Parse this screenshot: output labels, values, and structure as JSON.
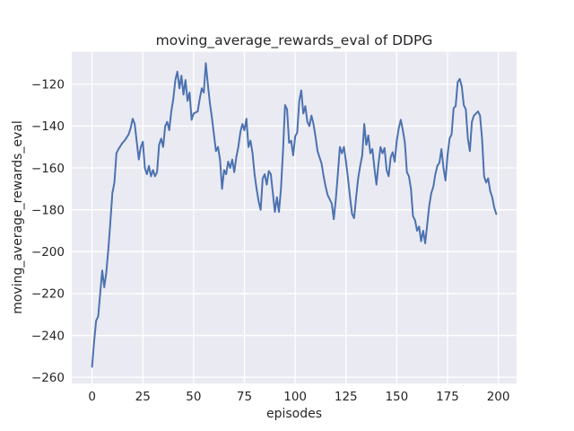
{
  "figure": {
    "title": "moving_average_rewards_eval of DDPG",
    "background_color": "#ffffff",
    "plot_background_color": "#eaeaf2",
    "grid_color": "#ffffff",
    "text_color": "#262626"
  },
  "chart_data": {
    "type": "line",
    "title": "moving_average_rewards_eval of DDPG",
    "xlabel": "episodes",
    "ylabel": "moving_average_rewards_eval",
    "xlim": [
      -10,
      209
    ],
    "ylim": [
      -263,
      -104.5
    ],
    "grid": true,
    "legend_position": "none",
    "x_ticks": [
      0,
      25,
      50,
      75,
      100,
      125,
      150,
      175,
      200
    ],
    "x_tick_labels": [
      "0",
      "25",
      "50",
      "75",
      "100",
      "125",
      "150",
      "175",
      "200"
    ],
    "y_ticks": [
      -120,
      -140,
      -160,
      -180,
      -200,
      -220,
      -240,
      -260
    ],
    "y_tick_labels": [
      "−120",
      "−140",
      "−160",
      "−180",
      "−200",
      "−220",
      "−240",
      "−260"
    ],
    "series": [
      {
        "name": "moving_average_rewards_eval",
        "color": "#4c72b0",
        "x_start": 0,
        "x_step": 1,
        "y": [
          -255,
          -243,
          -233,
          -231,
          -220,
          -209,
          -217,
          -210,
          -199,
          -186,
          -172,
          -167,
          -153,
          -151,
          -149.5,
          -148,
          -147,
          -145.5,
          -144,
          -141,
          -136.5,
          -139,
          -147.5,
          -156,
          -150,
          -147.5,
          -160,
          -163,
          -159,
          -164,
          -161,
          -164,
          -162,
          -149,
          -146,
          -150,
          -140,
          -138,
          -142,
          -133,
          -127,
          -118,
          -114,
          -122,
          -116,
          -125,
          -118,
          -128,
          -124,
          -137,
          -134,
          -133.5,
          -133,
          -127,
          -122,
          -124,
          -110,
          -120,
          -129,
          -136,
          -144,
          -152,
          -150,
          -156,
          -170,
          -161,
          -163,
          -157,
          -160,
          -156,
          -162,
          -155,
          -150,
          -143,
          -139,
          -142,
          -136.5,
          -150,
          -147,
          -153,
          -163,
          -170,
          -176,
          -180,
          -165,
          -163,
          -168,
          -161.5,
          -163,
          -172,
          -181,
          -174,
          -181,
          -170,
          -152,
          -130,
          -132,
          -148,
          -147,
          -154,
          -145,
          -143,
          -128,
          -123,
          -134,
          -130.5,
          -138,
          -140,
          -135,
          -139,
          -145,
          -152,
          -155,
          -158,
          -164,
          -169,
          -173,
          -175,
          -177,
          -184.5,
          -175,
          -163,
          -150,
          -153,
          -150,
          -157,
          -165,
          -174,
          -182,
          -184,
          -174,
          -165,
          -159,
          -154,
          -139,
          -149,
          -144.5,
          -153,
          -151,
          -160,
          -168,
          -158,
          -150,
          -153,
          -150.5,
          -161,
          -164,
          -155,
          -152.5,
          -157,
          -147,
          -141,
          -137,
          -142,
          -148,
          -162,
          -164,
          -170,
          -183,
          -185,
          -190,
          -188,
          -195,
          -190,
          -196,
          -187,
          -178,
          -172,
          -169,
          -163,
          -159,
          -157.5,
          -151,
          -160,
          -166,
          -154,
          -146,
          -144,
          -131.5,
          -130.5,
          -119,
          -117.5,
          -121,
          -130,
          -132,
          -146,
          -152,
          -138,
          -135,
          -134,
          -133,
          -135,
          -146,
          -164,
          -167,
          -165,
          -171,
          -174,
          -179,
          -182
        ]
      }
    ]
  }
}
